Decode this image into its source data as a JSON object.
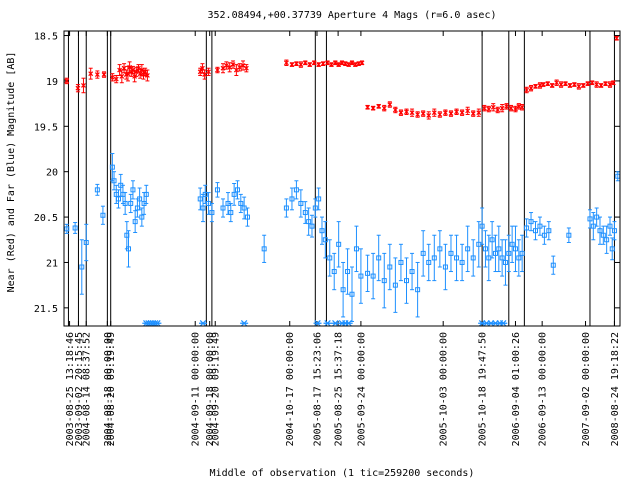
{
  "chart_data": {
    "type": "scatter",
    "title": "352.08494,+00.37739   Aperture 4 Mags (r=6.0 asec)",
    "xlabel": "Middle of observation (1 tic=259200 seconds)",
    "ylabel": "Near (Red) and Far (Blue) Magnitude [AB]",
    "ylim": [
      21.7,
      18.45
    ],
    "y_ticks": [
      "18.5",
      "19",
      "19.5",
      "20",
      "20.5",
      "21",
      "21.5"
    ],
    "y_tick_values": [
      18.5,
      19,
      19.5,
      20,
      20.5,
      21,
      21.5
    ],
    "x_range": [
      0,
      1
    ],
    "x_tick_labels": [
      "2003-08-25 13:18:46",
      "2003-09-02 20:15:45",
      "2004-08-14 08:37:52",
      "2004-08-18 00:00:00",
      "2004-08-20 09:19:49",
      "2004-09-11 00:00:00",
      "2004-09-18 00:00:00",
      "2004-09-20 09:19:49",
      "2004-10-17 00:00:00",
      "2005-08-17 15:23:06",
      "2005-08-25 15:37:18",
      "2005-09-24 00:00:00",
      "2005-10-03 00:00:00",
      "2005-10-18 19:47:50",
      "2006-09-04 01:00:26",
      "2006-09-13 00:00:00",
      "2007-09-02 00:00:00",
      "2008-08-24 19:18:22"
    ],
    "x_tick_positions": [
      0.01,
      0.026,
      0.04,
      0.078,
      0.084,
      0.236,
      0.262,
      0.272,
      0.406,
      0.455,
      0.493,
      0.534,
      0.682,
      0.752,
      0.812,
      0.86,
      0.938,
      0.99
    ],
    "session_separators": [
      0.008,
      0.026,
      0.04,
      0.078,
      0.084,
      0.256,
      0.266,
      0.452,
      0.472,
      0.752,
      0.8,
      0.828,
      0.946,
      0.99
    ],
    "series": [
      {
        "name": "Near (Red)",
        "color": "#ff0000",
        "marker": "x",
        "points": [
          [
            0.005,
            19.0,
            0.03
          ],
          [
            0.025,
            19.08,
            0.04
          ],
          [
            0.035,
            19.05,
            0.08
          ],
          [
            0.048,
            18.92,
            0.06
          ],
          [
            0.06,
            18.93,
            0.04
          ],
          [
            0.072,
            18.93,
            0.03
          ],
          [
            0.087,
            18.96,
            0.04
          ],
          [
            0.094,
            18.98,
            0.04
          ],
          [
            0.1,
            18.88,
            0.06
          ],
          [
            0.104,
            18.95,
            0.07
          ],
          [
            0.108,
            18.86,
            0.05
          ],
          [
            0.112,
            18.93,
            0.05
          ],
          [
            0.115,
            18.92,
            0.08
          ],
          [
            0.118,
            18.85,
            0.06
          ],
          [
            0.121,
            18.9,
            0.05
          ],
          [
            0.124,
            18.88,
            0.04
          ],
          [
            0.127,
            18.95,
            0.06
          ],
          [
            0.13,
            18.9,
            0.05
          ],
          [
            0.134,
            18.86,
            0.04
          ],
          [
            0.137,
            18.92,
            0.05
          ],
          [
            0.14,
            18.88,
            0.06
          ],
          [
            0.143,
            18.93,
            0.05
          ],
          [
            0.146,
            18.9,
            0.04
          ],
          [
            0.15,
            18.94,
            0.06
          ],
          [
            0.245,
            18.9,
            0.04
          ],
          [
            0.249,
            18.86,
            0.05
          ],
          [
            0.253,
            18.93,
            0.05
          ],
          [
            0.26,
            18.9,
            0.04
          ],
          [
            0.276,
            18.88,
            0.03
          ],
          [
            0.286,
            18.86,
            0.05
          ],
          [
            0.292,
            18.83,
            0.04
          ],
          [
            0.298,
            18.85,
            0.05
          ],
          [
            0.304,
            18.82,
            0.04
          ],
          [
            0.31,
            18.88,
            0.06
          ],
          [
            0.316,
            18.85,
            0.04
          ],
          [
            0.322,
            18.83,
            0.05
          ],
          [
            0.328,
            18.86,
            0.04
          ],
          [
            0.4,
            18.8,
            0.03
          ],
          [
            0.41,
            18.82,
            0.02
          ],
          [
            0.418,
            18.81,
            0.02
          ],
          [
            0.426,
            18.82,
            0.03
          ],
          [
            0.434,
            18.8,
            0.02
          ],
          [
            0.442,
            18.82,
            0.02
          ],
          [
            0.45,
            18.8,
            0.02
          ],
          [
            0.458,
            18.82,
            0.02
          ],
          [
            0.466,
            18.81,
            0.02
          ],
          [
            0.474,
            18.8,
            0.02
          ],
          [
            0.481,
            18.82,
            0.02
          ],
          [
            0.488,
            18.8,
            0.02
          ],
          [
            0.494,
            18.82,
            0.02
          ],
          [
            0.5,
            18.8,
            0.02
          ],
          [
            0.506,
            18.81,
            0.02
          ],
          [
            0.512,
            18.82,
            0.02
          ],
          [
            0.518,
            18.8,
            0.02
          ],
          [
            0.524,
            18.82,
            0.02
          ],
          [
            0.53,
            18.81,
            0.02
          ],
          [
            0.536,
            18.8,
            0.02
          ],
          [
            0.546,
            19.29,
            0.02
          ],
          [
            0.556,
            19.3,
            0.02
          ],
          [
            0.566,
            19.28,
            0.02
          ],
          [
            0.576,
            19.3,
            0.03
          ],
          [
            0.586,
            19.26,
            0.03
          ],
          [
            0.596,
            19.32,
            0.03
          ],
          [
            0.606,
            19.35,
            0.03
          ],
          [
            0.616,
            19.34,
            0.03
          ],
          [
            0.626,
            19.35,
            0.04
          ],
          [
            0.636,
            19.37,
            0.03
          ],
          [
            0.646,
            19.36,
            0.03
          ],
          [
            0.656,
            19.38,
            0.04
          ],
          [
            0.666,
            19.35,
            0.04
          ],
          [
            0.676,
            19.37,
            0.03
          ],
          [
            0.686,
            19.35,
            0.03
          ],
          [
            0.696,
            19.36,
            0.03
          ],
          [
            0.706,
            19.34,
            0.03
          ],
          [
            0.716,
            19.35,
            0.03
          ],
          [
            0.726,
            19.33,
            0.04
          ],
          [
            0.736,
            19.36,
            0.03
          ],
          [
            0.746,
            19.35,
            0.04
          ],
          [
            0.756,
            19.3,
            0.03
          ],
          [
            0.764,
            19.31,
            0.03
          ],
          [
            0.772,
            19.29,
            0.04
          ],
          [
            0.78,
            19.32,
            0.03
          ],
          [
            0.788,
            19.3,
            0.04
          ],
          [
            0.796,
            19.28,
            0.03
          ],
          [
            0.804,
            19.3,
            0.03
          ],
          [
            0.812,
            19.31,
            0.03
          ],
          [
            0.818,
            19.28,
            0.03
          ],
          [
            0.824,
            19.29,
            0.03
          ],
          [
            0.832,
            19.1,
            0.03
          ],
          [
            0.84,
            19.08,
            0.03
          ],
          [
            0.848,
            19.06,
            0.02
          ],
          [
            0.856,
            19.05,
            0.03
          ],
          [
            0.862,
            19.04,
            0.02
          ],
          [
            0.87,
            19.03,
            0.02
          ],
          [
            0.878,
            19.05,
            0.02
          ],
          [
            0.886,
            19.02,
            0.03
          ],
          [
            0.894,
            19.04,
            0.03
          ],
          [
            0.902,
            19.03,
            0.02
          ],
          [
            0.91,
            19.05,
            0.02
          ],
          [
            0.918,
            19.04,
            0.02
          ],
          [
            0.926,
            19.06,
            0.03
          ],
          [
            0.934,
            19.05,
            0.02
          ],
          [
            0.942,
            19.03,
            0.02
          ],
          [
            0.95,
            19.02,
            0.02
          ],
          [
            0.958,
            19.04,
            0.03
          ],
          [
            0.966,
            19.05,
            0.02
          ],
          [
            0.974,
            19.03,
            0.02
          ],
          [
            0.982,
            19.04,
            0.03
          ],
          [
            0.988,
            19.02,
            0.02
          ],
          [
            0.994,
            18.53,
            0.02
          ]
        ]
      },
      {
        "name": "Far (Blue)",
        "color": "#1e90ff",
        "marker": "square",
        "points": [
          [
            0.005,
            20.63,
            0.05
          ],
          [
            0.02,
            20.62,
            0.06
          ],
          [
            0.032,
            21.05,
            0.3
          ],
          [
            0.04,
            20.78,
            0.2
          ],
          [
            0.06,
            20.2,
            0.06
          ],
          [
            0.07,
            20.48,
            0.1
          ],
          [
            0.087,
            19.95,
            0.15
          ],
          [
            0.09,
            20.1,
            0.1
          ],
          [
            0.094,
            20.25,
            0.1
          ],
          [
            0.098,
            20.3,
            0.1
          ],
          [
            0.102,
            20.15,
            0.12
          ],
          [
            0.106,
            20.25,
            0.1
          ],
          [
            0.11,
            20.35,
            0.12
          ],
          [
            0.113,
            20.7,
            0.15
          ],
          [
            0.116,
            20.85,
            0.2
          ],
          [
            0.12,
            20.35,
            0.1
          ],
          [
            0.124,
            20.2,
            0.1
          ],
          [
            0.128,
            20.55,
            0.12
          ],
          [
            0.132,
            20.4,
            0.1
          ],
          [
            0.136,
            20.3,
            0.12
          ],
          [
            0.14,
            20.5,
            0.1
          ],
          [
            0.144,
            20.35,
            0.12
          ],
          [
            0.148,
            20.25,
            0.1
          ],
          [
            0.245,
            20.3,
            0.12
          ],
          [
            0.25,
            20.4,
            0.15
          ],
          [
            0.254,
            20.25,
            0.1
          ],
          [
            0.26,
            20.35,
            0.12
          ],
          [
            0.266,
            20.45,
            0.1
          ],
          [
            0.276,
            20.2,
            0.08
          ],
          [
            0.286,
            20.4,
            0.1
          ],
          [
            0.295,
            20.35,
            0.12
          ],
          [
            0.3,
            20.45,
            0.1
          ],
          [
            0.306,
            20.25,
            0.12
          ],
          [
            0.312,
            20.2,
            0.1
          ],
          [
            0.318,
            20.35,
            0.1
          ],
          [
            0.324,
            20.4,
            0.12
          ],
          [
            0.33,
            20.5,
            0.1
          ],
          [
            0.36,
            20.85,
            0.15
          ],
          [
            0.4,
            20.4,
            0.1
          ],
          [
            0.41,
            20.3,
            0.12
          ],
          [
            0.418,
            20.2,
            0.1
          ],
          [
            0.426,
            20.35,
            0.15
          ],
          [
            0.434,
            20.45,
            0.12
          ],
          [
            0.44,
            20.55,
            0.15
          ],
          [
            0.446,
            20.6,
            0.12
          ],
          [
            0.452,
            20.4,
            0.1
          ],
          [
            0.458,
            20.3,
            0.12
          ],
          [
            0.464,
            20.65,
            0.15
          ],
          [
            0.47,
            20.75,
            0.2
          ],
          [
            0.478,
            20.95,
            0.2
          ],
          [
            0.486,
            21.1,
            0.2
          ],
          [
            0.494,
            20.8,
            0.25
          ],
          [
            0.502,
            21.3,
            0.3
          ],
          [
            0.51,
            21.1,
            0.25
          ],
          [
            0.518,
            21.35,
            0.3
          ],
          [
            0.526,
            20.85,
            0.25
          ],
          [
            0.534,
            21.15,
            0.3
          ],
          [
            0.546,
            21.12,
            0.2
          ],
          [
            0.556,
            21.15,
            0.25
          ],
          [
            0.566,
            20.95,
            0.25
          ],
          [
            0.576,
            21.2,
            0.3
          ],
          [
            0.586,
            21.05,
            0.25
          ],
          [
            0.596,
            21.25,
            0.3
          ],
          [
            0.606,
            21.0,
            0.2
          ],
          [
            0.616,
            21.2,
            0.25
          ],
          [
            0.626,
            21.1,
            0.2
          ],
          [
            0.636,
            21.3,
            0.3
          ],
          [
            0.646,
            20.9,
            0.25
          ],
          [
            0.656,
            21.0,
            0.2
          ],
          [
            0.666,
            20.95,
            0.25
          ],
          [
            0.676,
            20.85,
            0.2
          ],
          [
            0.686,
            21.05,
            0.25
          ],
          [
            0.696,
            20.9,
            0.2
          ],
          [
            0.706,
            20.95,
            0.25
          ],
          [
            0.716,
            21.0,
            0.2
          ],
          [
            0.726,
            20.85,
            0.25
          ],
          [
            0.736,
            20.95,
            0.2
          ],
          [
            0.746,
            20.8,
            0.25
          ],
          [
            0.752,
            20.6,
            0.2
          ],
          [
            0.758,
            20.85,
            0.2
          ],
          [
            0.764,
            20.95,
            0.25
          ],
          [
            0.77,
            20.75,
            0.2
          ],
          [
            0.776,
            20.9,
            0.2
          ],
          [
            0.782,
            20.85,
            0.25
          ],
          [
            0.788,
            20.95,
            0.2
          ],
          [
            0.794,
            21.0,
            0.25
          ],
          [
            0.8,
            20.9,
            0.2
          ],
          [
            0.806,
            20.8,
            0.2
          ],
          [
            0.812,
            20.85,
            0.25
          ],
          [
            0.818,
            20.95,
            0.2
          ],
          [
            0.824,
            20.9,
            0.2
          ],
          [
            0.832,
            20.62,
            0.1
          ],
          [
            0.84,
            20.55,
            0.1
          ],
          [
            0.848,
            20.65,
            0.1
          ],
          [
            0.856,
            20.6,
            0.1
          ],
          [
            0.864,
            20.7,
            0.1
          ],
          [
            0.872,
            20.65,
            0.1
          ],
          [
            0.88,
            21.03,
            0.1
          ],
          [
            0.908,
            20.7,
            0.08
          ],
          [
            0.946,
            20.52,
            0.1
          ],
          [
            0.952,
            20.6,
            0.15
          ],
          [
            0.958,
            20.5,
            0.1
          ],
          [
            0.964,
            20.65,
            0.15
          ],
          [
            0.97,
            20.7,
            0.1
          ],
          [
            0.976,
            20.75,
            0.15
          ],
          [
            0.982,
            20.6,
            0.1
          ],
          [
            0.986,
            20.85,
            0.12
          ],
          [
            0.99,
            20.65,
            0.1
          ],
          [
            0.996,
            20.05,
            0.05
          ]
        ]
      }
    ],
    "markers_bottom": {
      "color": "#1e90ff",
      "marker": "asterisk",
      "y": 21.67,
      "x": [
        0.148,
        0.152,
        0.156,
        0.16,
        0.164,
        0.168,
        0.25,
        0.324,
        0.456,
        0.474,
        0.488,
        0.5,
        0.506,
        0.512,
        0.752,
        0.76,
        0.768,
        0.776,
        0.784,
        0.79
      ]
    }
  }
}
